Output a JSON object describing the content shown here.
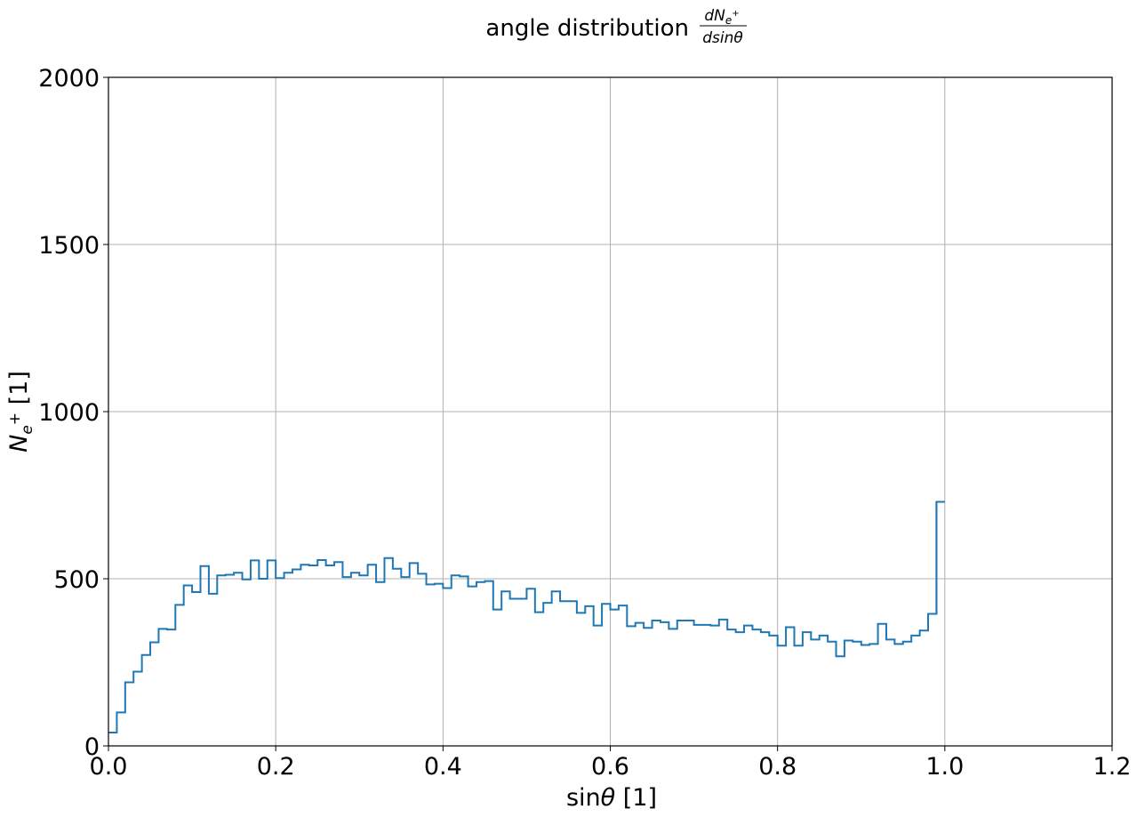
{
  "chart_data": {
    "type": "step",
    "title": {
      "text": "angle distribution",
      "fraction_numerator": "dN",
      "numerator_subscript": "e",
      "numerator_superscript": "+",
      "fraction_denominator": "dsin",
      "denominator_symbol": "θ"
    },
    "xlabel": {
      "prefix": "sin",
      "symbol": "θ",
      "unit": " [1]"
    },
    "ylabel": {
      "symbol": "N",
      "subscript": "e",
      "superscript": "+",
      "unit": " [1]"
    },
    "xlim": [
      0.0,
      1.2
    ],
    "ylim": [
      0,
      2000
    ],
    "xticks": [
      0.0,
      0.2,
      0.4,
      0.6,
      0.8,
      1.0,
      1.2
    ],
    "xtick_labels": [
      "0.0",
      "0.2",
      "0.4",
      "0.6",
      "0.8",
      "1.0",
      "1.2"
    ],
    "yticks": [
      0,
      500,
      1000,
      1500,
      2000
    ],
    "ytick_labels": [
      "0",
      "500",
      "1000",
      "1500",
      "2000"
    ],
    "grid": true,
    "line_color": "#1f77b4",
    "grid_color": "#b0b0b0",
    "bin_start": 0.0,
    "bin_width": 0.01,
    "values": [
      40,
      100,
      190,
      222,
      272,
      310,
      350,
      348,
      422,
      480,
      460,
      538,
      455,
      510,
      512,
      518,
      498,
      555,
      500,
      555,
      502,
      518,
      528,
      542,
      540,
      556,
      540,
      550,
      505,
      518,
      510,
      542,
      490,
      562,
      530,
      505,
      547,
      515,
      483,
      485,
      472,
      510,
      507,
      477,
      490,
      493,
      408,
      462,
      440,
      440,
      470,
      400,
      428,
      462,
      433,
      433,
      398,
      418,
      360,
      425,
      408,
      420,
      358,
      368,
      353,
      375,
      370,
      350,
      375,
      375,
      362,
      362,
      360,
      378,
      348,
      340,
      360,
      348,
      340,
      330,
      300,
      355,
      300,
      340,
      318,
      330,
      312,
      268,
      315,
      312,
      302,
      305,
      365,
      318,
      305,
      312,
      330,
      345,
      395,
      730
    ]
  }
}
